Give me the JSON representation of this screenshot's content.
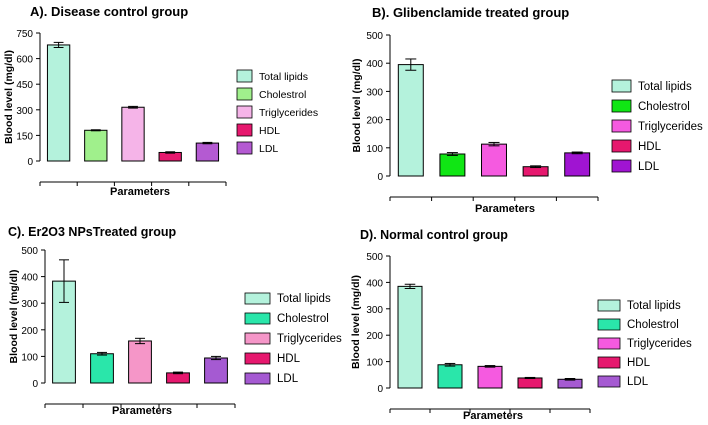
{
  "chart_data": [
    {
      "type": "bar",
      "panel": "A",
      "title": "A).  Disease control group",
      "xlabel": "Parameters",
      "ylabel": "Blood level (mg/dl)",
      "ylim": [
        0,
        750
      ],
      "yticks": [
        "0",
        "150",
        "300",
        "450",
        "600",
        "750"
      ],
      "categories": [
        "Total lipids",
        "Cholestrol",
        "Triglycerides",
        "HDL",
        "LDL"
      ],
      "values": [
        680,
        180,
        315,
        50,
        105
      ],
      "errors": [
        15,
        3,
        5,
        4,
        4
      ],
      "colors": [
        "#b4f2dc",
        "#a0f08c",
        "#f5b4e8",
        "#e6186e",
        "#b45ad2"
      ],
      "legend_position": "right"
    },
    {
      "type": "bar",
      "panel": "B",
      "title": "B).  Glibenclamide treated group",
      "xlabel": "Parameters",
      "ylabel": "Blood level (mg/dl)",
      "ylim": [
        0,
        500
      ],
      "yticks": [
        "0",
        "100",
        "200",
        "300",
        "400",
        "500"
      ],
      "categories": [
        "Total lipids",
        "Cholestrol",
        "Triglycerides",
        "HDL",
        "LDL"
      ],
      "values": [
        395,
        78,
        113,
        33,
        82
      ],
      "errors": [
        20,
        5,
        6,
        3,
        3
      ],
      "colors": [
        "#b4f2dc",
        "#10e614",
        "#f55ae0",
        "#e6186e",
        "#a014d2"
      ],
      "legend_position": "right"
    },
    {
      "type": "bar",
      "panel": "C",
      "title": "C).  Er2O3 NPsTreated group",
      "xlabel": "Parameters",
      "ylabel": "Blood level (mg/dl)",
      "ylim": [
        0,
        500
      ],
      "yticks": [
        "0",
        "100",
        "200",
        "300",
        "400",
        "500"
      ],
      "categories": [
        "Total lipids",
        "Cholestrol",
        "Triglycerides",
        "HDL",
        "LDL"
      ],
      "values": [
        383,
        110,
        158,
        38,
        94
      ],
      "errors": [
        80,
        5,
        10,
        3,
        6
      ],
      "colors": [
        "#b4f2dc",
        "#2ae6aa",
        "#f596c8",
        "#e6186e",
        "#a55ad2"
      ],
      "legend_position": "right"
    },
    {
      "type": "bar",
      "panel": "D",
      "title": "D).  Normal control group",
      "xlabel": "Parameters",
      "ylabel": "Blood level (mg/dl)",
      "ylim": [
        0,
        500
      ],
      "yticks": [
        "0",
        "100",
        "200",
        "300",
        "400",
        "500"
      ],
      "categories": [
        "Total lipids",
        "Cholestrol",
        "Triglycerides",
        "HDL",
        "LDL"
      ],
      "values": [
        385,
        88,
        82,
        38,
        33
      ],
      "errors": [
        8,
        5,
        3,
        2,
        3
      ],
      "colors": [
        "#b4f2dc",
        "#2ae6aa",
        "#f55ae0",
        "#e6186e",
        "#a55ad2"
      ],
      "legend_position": "right"
    }
  ]
}
